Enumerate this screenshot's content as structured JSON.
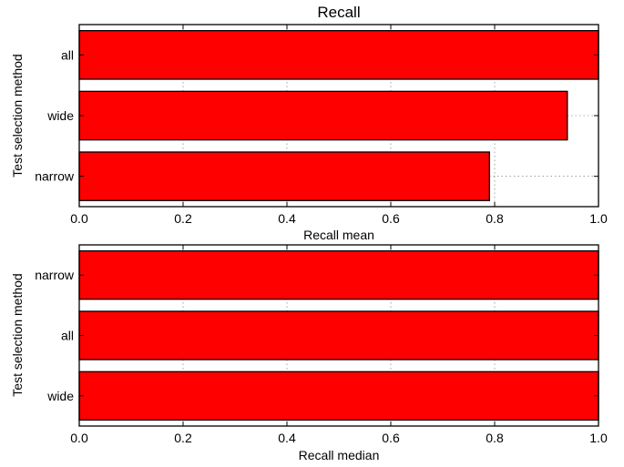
{
  "chart_data": [
    {
      "type": "bar",
      "orientation": "horizontal",
      "title": "Recall",
      "xlabel": "Recall mean",
      "ylabel": "Test selection method",
      "categories": [
        "all",
        "wide",
        "narrow"
      ],
      "values": [
        1.0,
        0.94,
        0.79
      ],
      "xlim": [
        0,
        1
      ],
      "xticks": [
        "0.0",
        "0.2",
        "0.4",
        "0.6",
        "0.8",
        "1.0"
      ],
      "bar_color": "#ff0000",
      "grid": true
    },
    {
      "type": "bar",
      "orientation": "horizontal",
      "title": "",
      "xlabel": "Recall median",
      "ylabel": "Test selection method",
      "categories": [
        "narrow",
        "all",
        "wide"
      ],
      "values": [
        1.0,
        1.0,
        1.0
      ],
      "xlim": [
        0,
        1
      ],
      "xticks": [
        "0.0",
        "0.2",
        "0.4",
        "0.6",
        "0.8",
        "1.0"
      ],
      "bar_color": "#ff0000",
      "grid": true
    }
  ]
}
